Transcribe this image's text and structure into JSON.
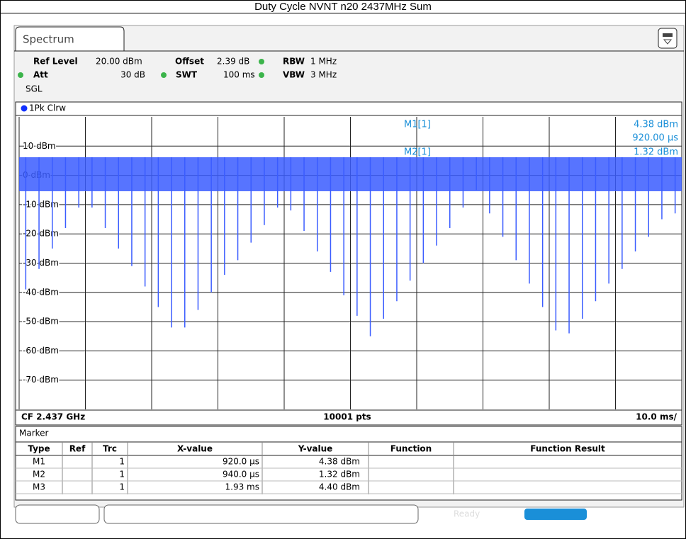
{
  "chart_data": {
    "type": "line",
    "title": "Duty Cycle NVNT n20 2437MHz Sum",
    "xlim": [
      0,
      100
    ],
    "xticks": [
      0,
      10,
      20,
      30,
      40,
      50,
      60,
      70,
      80,
      90,
      100
    ],
    "ylim": [
      -80,
      20
    ],
    "yticks": [
      {
        "value": 10,
        "label": "10 dBm"
      },
      {
        "value": 0,
        "label": "0 dBm"
      },
      {
        "value": -10,
        "label": "-10 dBm"
      },
      {
        "value": -20,
        "label": "-20 dBm"
      },
      {
        "value": -30,
        "label": "-30 dBm"
      },
      {
        "value": -40,
        "label": "-40 dBm"
      },
      {
        "value": -50,
        "label": "-50 dBm"
      },
      {
        "value": -60,
        "label": "-60 dBm"
      },
      {
        "value": -70,
        "label": "-70 dBm"
      }
    ],
    "grid": true,
    "series": [
      {
        "name": "1Pk Clrw",
        "color": "#3a5cff",
        "x": [
          1,
          3,
          5,
          7,
          9,
          11,
          13,
          15,
          17,
          19,
          21,
          23,
          25,
          27,
          29,
          31,
          33,
          35,
          37,
          39,
          41,
          43,
          45,
          47,
          49,
          51,
          53,
          55,
          57,
          59,
          61,
          63,
          65,
          67,
          69,
          71,
          73,
          75,
          77,
          79,
          81,
          83,
          85,
          87,
          89,
          91,
          93,
          95,
          97,
          99
        ],
        "values": [
          -39,
          -32,
          -25,
          -18,
          -11,
          -11,
          -18,
          -25,
          -31,
          -38,
          -45,
          -52,
          -52,
          -46,
          -40,
          -34,
          -29,
          -23,
          -17,
          -11,
          -12,
          -19,
          -26,
          -33,
          -41,
          -48,
          -55,
          -49,
          -43,
          -36,
          -30,
          -24,
          -18,
          -11,
          -5,
          -13,
          -21,
          -29,
          -37,
          -45,
          -53,
          -54,
          -49,
          -43,
          -37,
          -32,
          -26,
          -21,
          -15,
          -13
        ]
      }
    ]
  },
  "tab": "Spectrum",
  "settings": {
    "ref_level_label": "Ref Level",
    "ref_level": "20.00 dBm",
    "offset_label": "Offset",
    "offset": "2.39 dB",
    "rbw_label": "RBW",
    "rbw": "1 MHz",
    "att_label": "Att",
    "att": "30 dB",
    "swt_label": "SWT",
    "swt": "100 ms",
    "vbw_label": "VBW",
    "vbw": "3 MHz",
    "mode": "SGL"
  },
  "marker_readout": [
    {
      "name": "M1[1]",
      "level": "4.38 dBm",
      "time": "920.00 µs"
    },
    {
      "name": "M2[1]",
      "level": "1.32 dBm"
    }
  ],
  "footer": {
    "center_freq": "CF 2.437 GHz",
    "points": "10001 pts",
    "sweep_scale": "10.0 ms/"
  },
  "marker_table": {
    "title": "Marker",
    "columns": [
      "Type",
      "Ref",
      "Trc",
      "X-value",
      "Y-value",
      "Function",
      "Function Result"
    ],
    "rows": [
      {
        "type": "M1",
        "trc": "1",
        "x": "920.0 µs",
        "y": "4.38 dBm"
      },
      {
        "type": "M2",
        "trc": "1",
        "x": "940.0 µs",
        "y": "1.32 dBm"
      },
      {
        "type": "M3",
        "trc": "1",
        "x": "1.93 ms",
        "y": "4.40 dBm"
      }
    ]
  },
  "status": "Ready"
}
